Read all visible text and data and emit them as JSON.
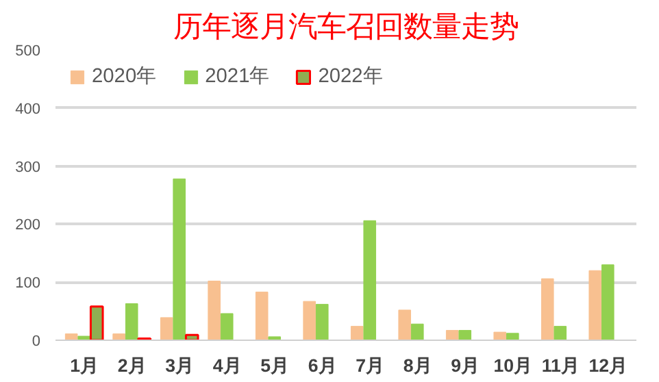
{
  "chart_data": {
    "type": "bar",
    "title": "历年逐月汽车召回数量走势",
    "categories": [
      "1月",
      "2月",
      "3月",
      "4月",
      "5月",
      "6月",
      "7月",
      "8月",
      "9月",
      "10月",
      "11月",
      "12月"
    ],
    "series": [
      {
        "name": "2020年",
        "color": "#f8c090",
        "values": [
          11,
          11,
          39,
          102,
          83,
          67,
          24,
          52,
          17,
          14,
          106,
          120
        ]
      },
      {
        "name": "2021年",
        "color": "#92d050",
        "values": [
          7,
          63,
          278,
          46,
          6,
          62,
          206,
          28,
          17,
          12,
          24,
          130
        ]
      },
      {
        "name": "2022年",
        "color": "#8fae52",
        "values": [
          58,
          3,
          9,
          null,
          null,
          null,
          null,
          null,
          null,
          null,
          null,
          null
        ]
      }
    ],
    "ylim": [
      0,
      500
    ],
    "yticks": [
      0,
      100,
      200,
      300,
      400,
      500
    ],
    "grid": "y",
    "legend": "top left"
  }
}
